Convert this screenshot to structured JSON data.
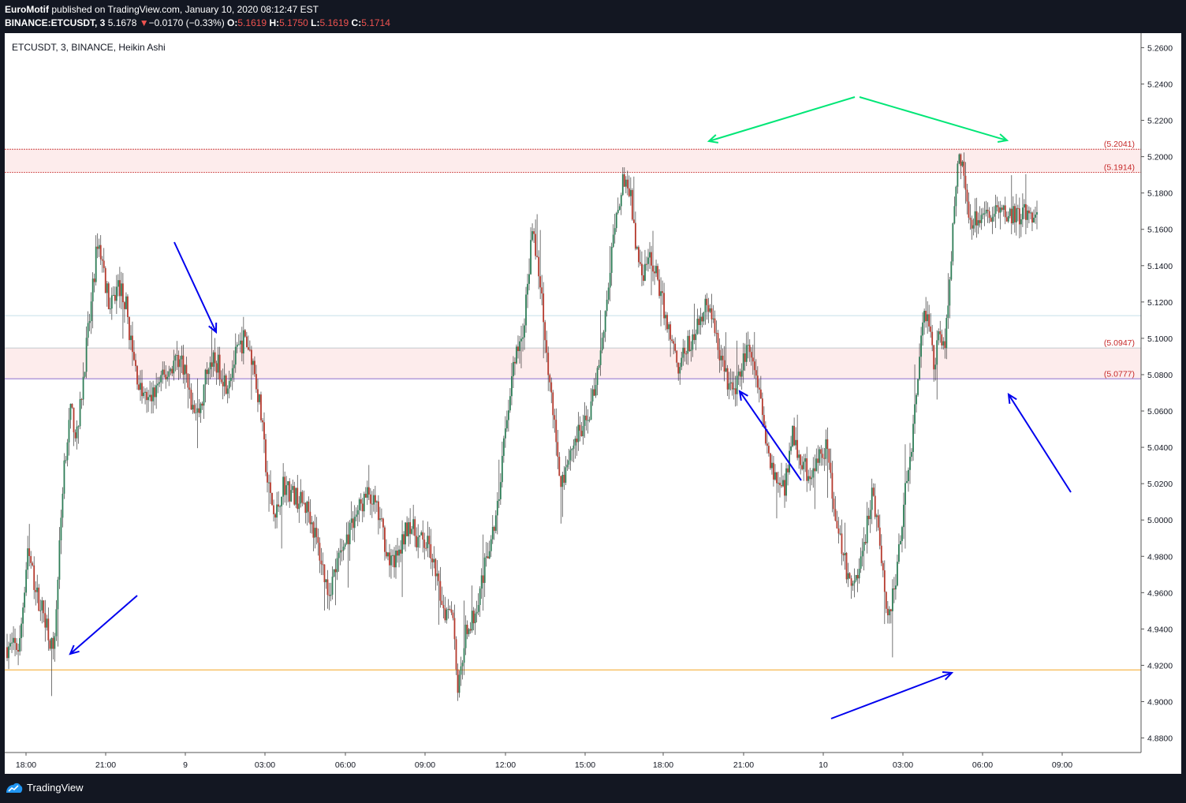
{
  "header": {
    "publisher": "EuroMotif",
    "published_text": "published on TradingView.com, January 10, 2020 08:12:47 EST",
    "symbol_line": "BINANCE:ETCUSDT, 3",
    "last": "5.1678",
    "change_arrow": "▼",
    "change": "−0.0170 (−0.33%)",
    "o_label": "O:",
    "o": "5.1619",
    "h_label": "H:",
    "h": "5.1750",
    "l_label": "L:",
    "l": "5.1619",
    "c_label": "C:",
    "c": "5.1714"
  },
  "legend": "ETCUSDT, 3, BINANCE, Heikin Ashi",
  "footer": {
    "brand": "TradingView",
    "logo_icon": "tradingview-logo-icon"
  },
  "colors": {
    "up": "#26a69a",
    "up_body": "#2e7d57",
    "down": "#b53a2e",
    "zone": "#fdecec",
    "orange_line": "#f5a623",
    "blue_arrow": "#0000ee",
    "green_arrow": "#00e676",
    "level_text": "#c62828"
  },
  "chart_data": {
    "type": "candlestick",
    "title": "ETCUSDT, 3, BINANCE, Heikin Ashi",
    "ylim": [
      4.872,
      5.268
    ],
    "y_ticks": [
      "5.2600",
      "5.2400",
      "5.2200",
      "5.2000",
      "5.1800",
      "5.1600",
      "5.1400",
      "5.1200",
      "5.1000",
      "5.0800",
      "5.0600",
      "5.0400",
      "5.0200",
      "5.0000",
      "4.9800",
      "4.9600",
      "4.9400",
      "4.9200",
      "4.9000",
      "4.8800"
    ],
    "x_ticks": [
      "18:00",
      "21:00",
      "9",
      "03:00",
      "06:00",
      "09:00",
      "12:00",
      "15:00",
      "18:00",
      "21:00",
      "10",
      "03:00",
      "06:00",
      "09:00"
    ],
    "levels": [
      {
        "label": "(5.2041)",
        "value": 5.2041
      },
      {
        "label": "(5.1914)",
        "value": 5.1914
      },
      {
        "label": "(5.0947)",
        "value": 5.0947
      },
      {
        "label": "(5.0777)",
        "value": 5.0777
      }
    ],
    "support_line": 4.9175,
    "minor_line": 5.1125,
    "price_path": [
      [
        0,
        4.93
      ],
      [
        0.012,
        4.93
      ],
      [
        0.02,
        4.985
      ],
      [
        0.028,
        4.96
      ],
      [
        0.038,
        4.945
      ],
      [
        0.045,
        4.925
      ],
      [
        0.05,
        4.975
      ],
      [
        0.055,
        5.03
      ],
      [
        0.062,
        5.06
      ],
      [
        0.068,
        5.045
      ],
      [
        0.075,
        5.085
      ],
      [
        0.082,
        5.12
      ],
      [
        0.088,
        5.155
      ],
      [
        0.093,
        5.14
      ],
      [
        0.1,
        5.115
      ],
      [
        0.108,
        5.13
      ],
      [
        0.115,
        5.12
      ],
      [
        0.122,
        5.09
      ],
      [
        0.13,
        5.07
      ],
      [
        0.138,
        5.065
      ],
      [
        0.147,
        5.075
      ],
      [
        0.155,
        5.08
      ],
      [
        0.165,
        5.09
      ],
      [
        0.172,
        5.085
      ],
      [
        0.18,
        5.06
      ],
      [
        0.188,
        5.06
      ],
      [
        0.196,
        5.09
      ],
      [
        0.205,
        5.085
      ],
      [
        0.213,
        5.075
      ],
      [
        0.222,
        5.09
      ],
      [
        0.23,
        5.1
      ],
      [
        0.238,
        5.09
      ],
      [
        0.246,
        5.06
      ],
      [
        0.253,
        5.02
      ],
      [
        0.26,
        5.0
      ],
      [
        0.268,
        5.02
      ],
      [
        0.276,
        5.015
      ],
      [
        0.285,
        5.01
      ],
      [
        0.293,
        5.005
      ],
      [
        0.302,
        4.985
      ],
      [
        0.312,
        4.96
      ],
      [
        0.32,
        4.975
      ],
      [
        0.33,
        4.99
      ],
      [
        0.34,
        5.005
      ],
      [
        0.352,
        5.015
      ],
      [
        0.362,
        5.0
      ],
      [
        0.372,
        4.975
      ],
      [
        0.38,
        4.98
      ],
      [
        0.39,
        5.0
      ],
      [
        0.398,
        4.99
      ],
      [
        0.41,
        4.985
      ],
      [
        0.418,
        4.965
      ],
      [
        0.425,
        4.95
      ],
      [
        0.432,
        4.955
      ],
      [
        0.438,
        4.905
      ],
      [
        0.445,
        4.94
      ],
      [
        0.452,
        4.945
      ],
      [
        0.46,
        4.965
      ],
      [
        0.468,
        4.985
      ],
      [
        0.475,
        5.0
      ],
      [
        0.482,
        5.04
      ],
      [
        0.488,
        5.07
      ],
      [
        0.494,
        5.09
      ],
      [
        0.5,
        5.1
      ],
      [
        0.505,
        5.125
      ],
      [
        0.51,
        5.165
      ],
      [
        0.515,
        5.14
      ],
      [
        0.52,
        5.12
      ],
      [
        0.526,
        5.08
      ],
      [
        0.532,
        5.05
      ],
      [
        0.538,
        5.02
      ],
      [
        0.545,
        5.035
      ],
      [
        0.552,
        5.045
      ],
      [
        0.56,
        5.05
      ],
      [
        0.568,
        5.065
      ],
      [
        0.575,
        5.09
      ],
      [
        0.582,
        5.12
      ],
      [
        0.588,
        5.15
      ],
      [
        0.594,
        5.175
      ],
      [
        0.6,
        5.19
      ],
      [
        0.606,
        5.175
      ],
      [
        0.612,
        5.145
      ],
      [
        0.618,
        5.135
      ],
      [
        0.626,
        5.145
      ],
      [
        0.632,
        5.13
      ],
      [
        0.638,
        5.115
      ],
      [
        0.645,
        5.1
      ],
      [
        0.652,
        5.085
      ],
      [
        0.66,
        5.095
      ],
      [
        0.668,
        5.1
      ],
      [
        0.675,
        5.115
      ],
      [
        0.682,
        5.12
      ],
      [
        0.688,
        5.1
      ],
      [
        0.695,
        5.085
      ],
      [
        0.703,
        5.07
      ],
      [
        0.71,
        5.075
      ],
      [
        0.718,
        5.095
      ],
      [
        0.725,
        5.08
      ],
      [
        0.732,
        5.065
      ],
      [
        0.74,
        5.035
      ],
      [
        0.748,
        5.02
      ],
      [
        0.755,
        5.015
      ],
      [
        0.762,
        5.05
      ],
      [
        0.77,
        5.035
      ],
      [
        0.778,
        5.025
      ],
      [
        0.786,
        5.03
      ],
      [
        0.795,
        5.04
      ],
      [
        0.803,
        5.01
      ],
      [
        0.81,
        4.985
      ],
      [
        0.818,
        4.965
      ],
      [
        0.826,
        4.97
      ],
      [
        0.833,
        4.99
      ],
      [
        0.84,
        5.015
      ],
      [
        0.848,
        4.985
      ],
      [
        0.855,
        4.945
      ],
      [
        0.862,
        4.965
      ],
      [
        0.868,
        4.995
      ],
      [
        0.875,
        5.03
      ],
      [
        0.88,
        5.05
      ],
      [
        0.885,
        5.085
      ],
      [
        0.89,
        5.115
      ],
      [
        0.895,
        5.11
      ],
      [
        0.9,
        5.085
      ],
      [
        0.905,
        5.105
      ],
      [
        0.91,
        5.09
      ],
      [
        0.915,
        5.13
      ],
      [
        0.92,
        5.18
      ],
      [
        0.925,
        5.2
      ],
      [
        0.93,
        5.185
      ],
      [
        0.935,
        5.165
      ],
      [
        0.94,
        5.168
      ]
    ]
  }
}
